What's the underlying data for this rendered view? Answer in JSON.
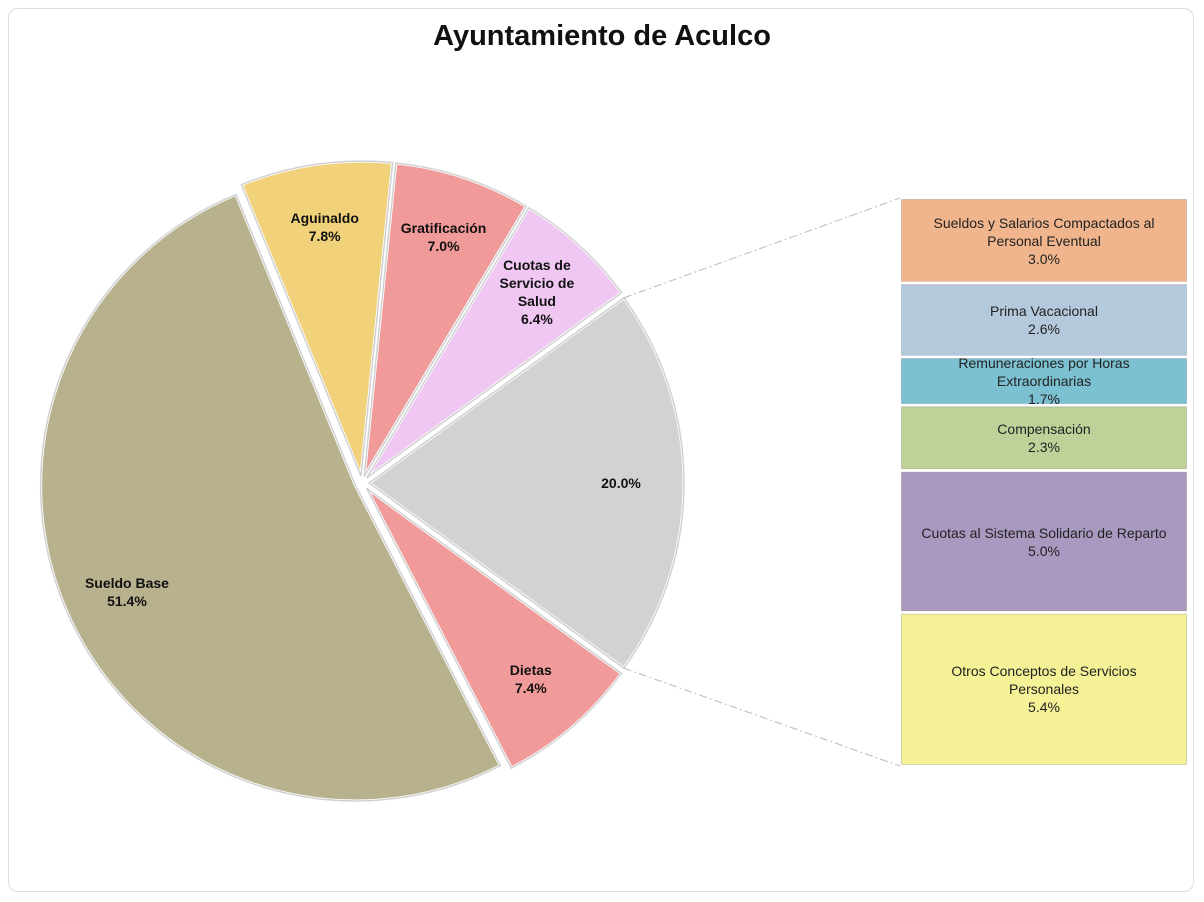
{
  "chart_data": {
    "type": "pie",
    "title": "Ayuntamiento de Aculco",
    "categories": [
      null,
      "Dietas",
      "Sueldo Base",
      "Aguinaldo",
      "Gratificación",
      "Cuotas de Servicio de Salud"
    ],
    "values": [
      20.0,
      7.4,
      51.4,
      7.8,
      7.0,
      6.4
    ],
    "value_labels": [
      "20.0%",
      "7.4%",
      "51.4%",
      "7.8%",
      "7.0%",
      "6.4%"
    ],
    "colors": [
      "#d2d2d2",
      "#f09a9a",
      "#b8b18d",
      "#f1d27b",
      "#f09a9a",
      "#f0c6f2"
    ],
    "breakdown": {
      "categories": [
        "Sueldos y Salarios Compactados al Personal Eventual",
        "Prima Vacacional",
        "Remuneraciones por Horas Extraordinarias",
        "Compensación",
        "Cuotas al Sistema Solidario de Reparto",
        "Otros Conceptos de Servicios Personales"
      ],
      "values": [
        3.0,
        2.6,
        1.7,
        2.3,
        5.0,
        5.4
      ],
      "value_labels": [
        "3.0%",
        "2.6%",
        "1.7%",
        "2.3%",
        "5.0%",
        "5.4%"
      ],
      "colors": [
        "#f0b58d",
        "#b5c9dd",
        "#7bc1d1",
        "#bdd199",
        "#a999c1",
        "#f4f196"
      ]
    }
  }
}
